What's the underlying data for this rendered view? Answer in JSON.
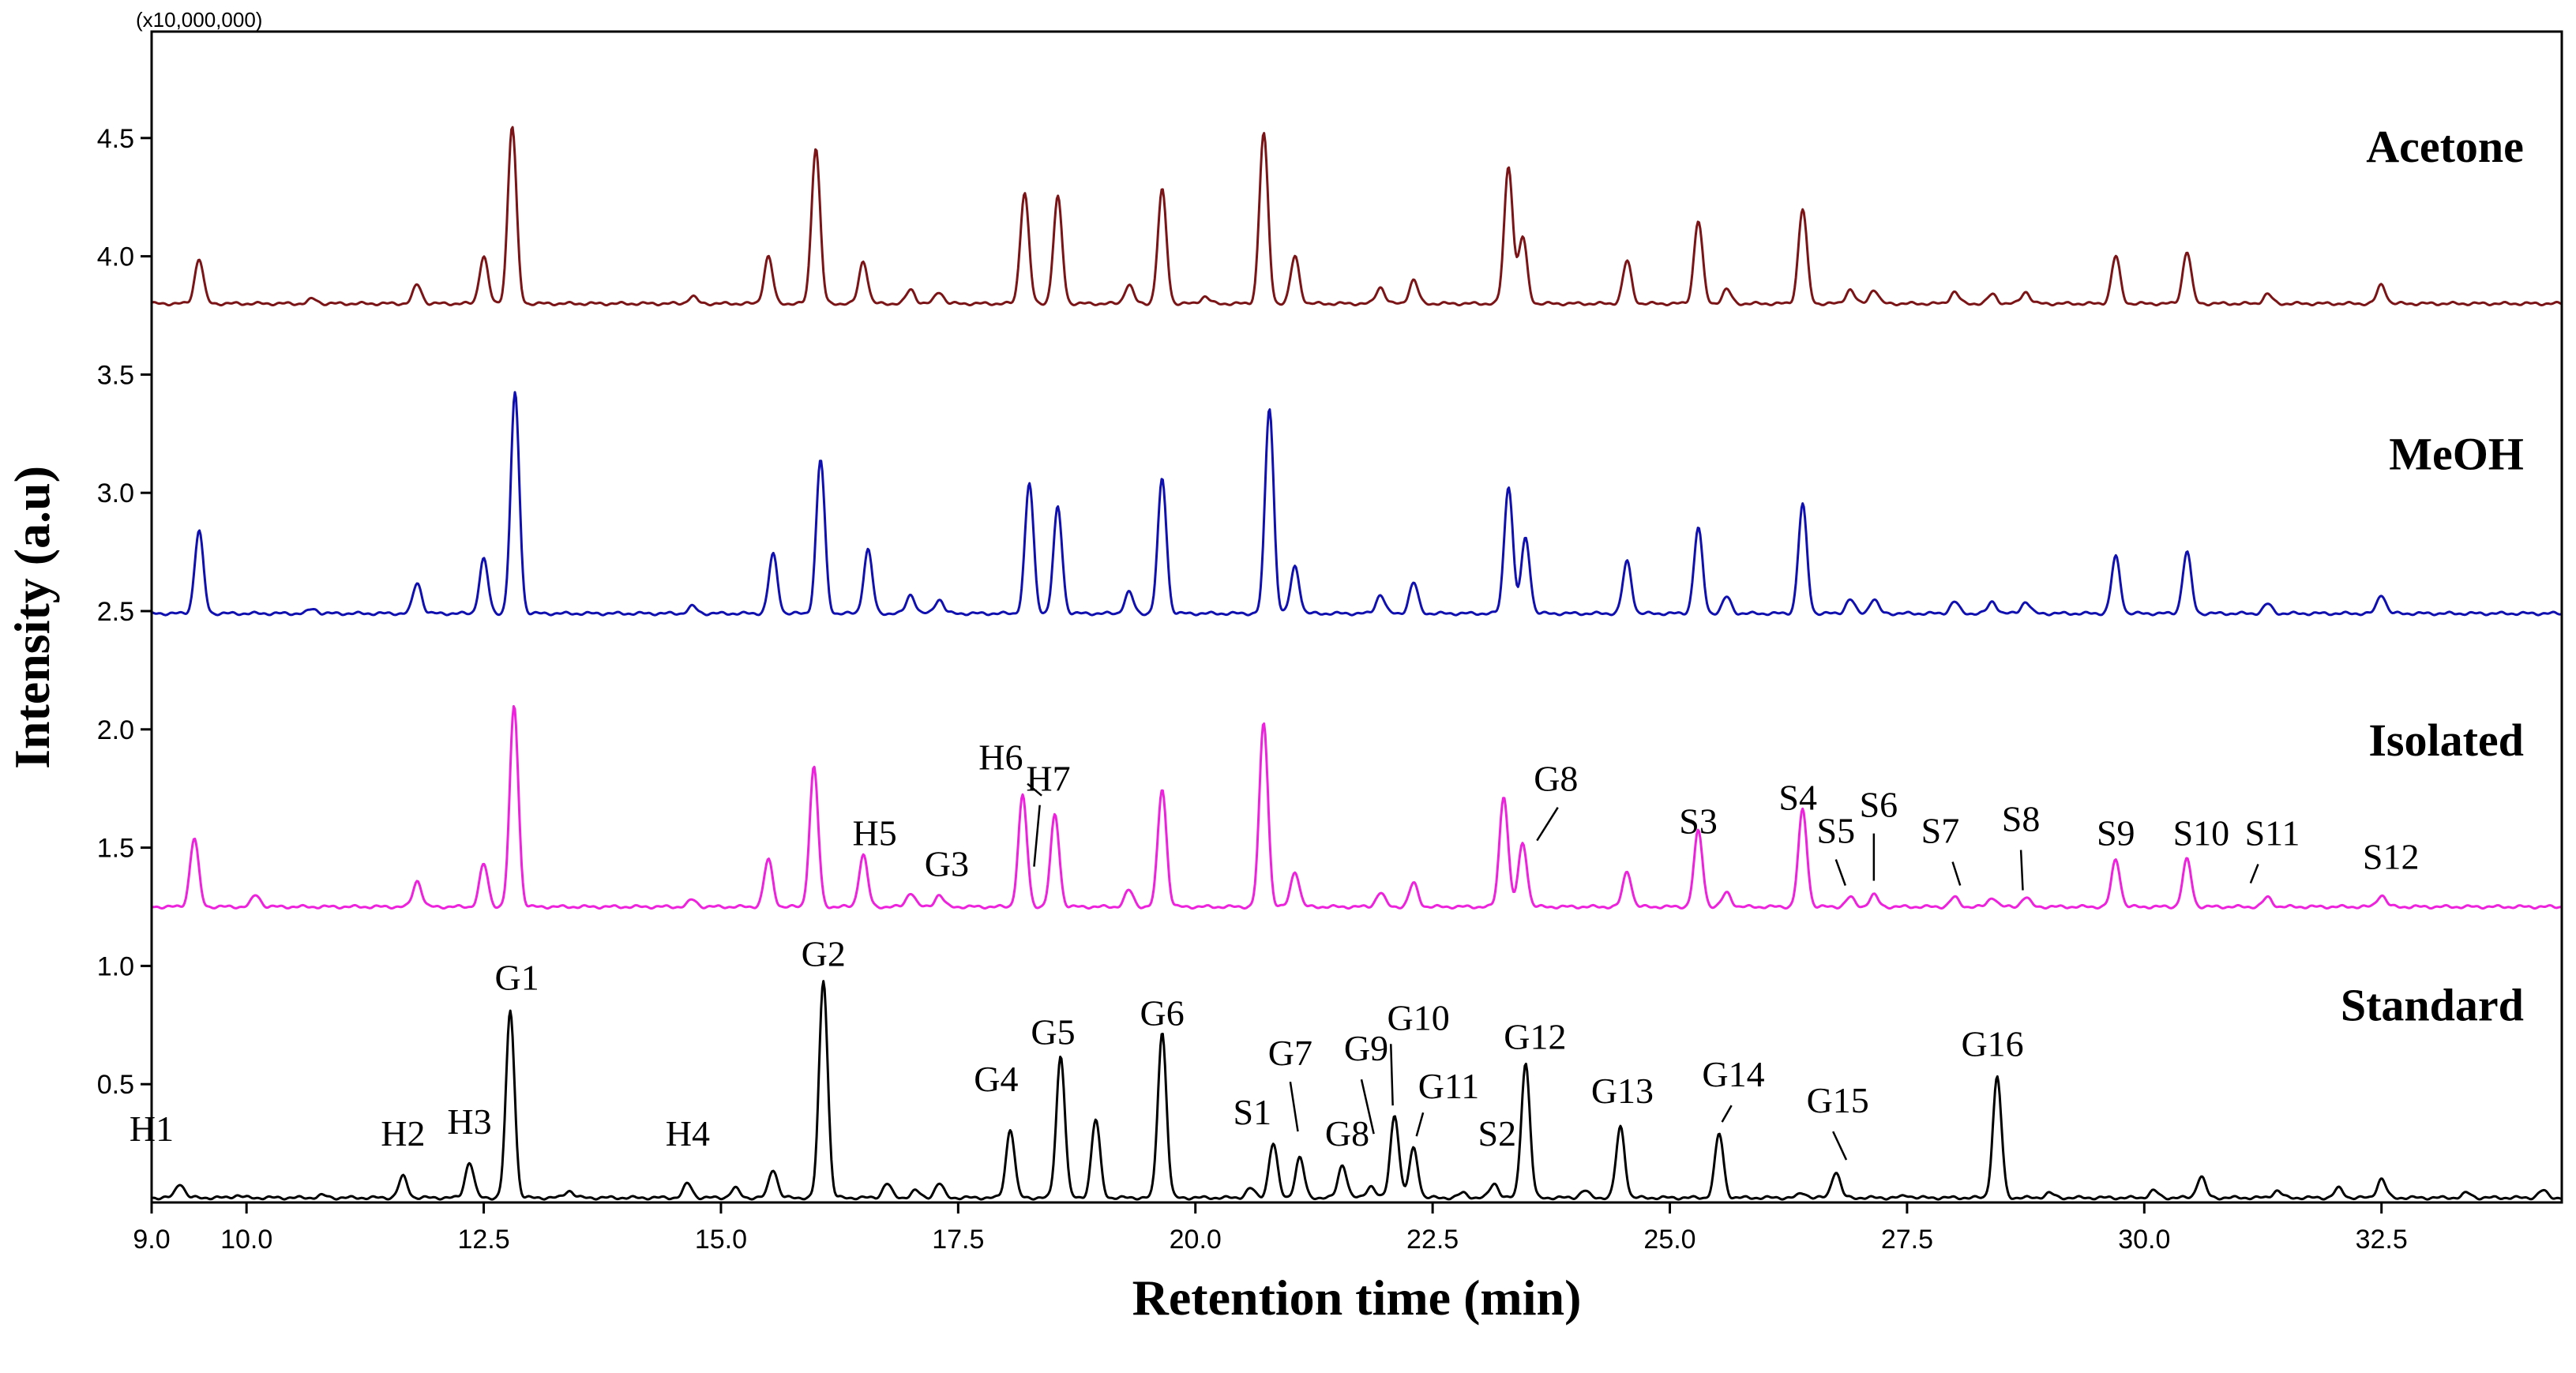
{
  "chart_data": {
    "type": "line",
    "title": "",
    "xlabel": "Retention time (min)",
    "ylabel": "Intensity (a.u)",
    "y_multiplier": "(x10,000,000)",
    "xlim": [
      9.0,
      34.4
    ],
    "ylim": [
      0.0,
      4.95
    ],
    "x_ticks": [
      "9.0",
      "10.0",
      "12.5",
      "15.0",
      "17.5",
      "20.0",
      "22.5",
      "25.0",
      "27.5",
      "30.0",
      "32.5"
    ],
    "x_tick_values": [
      9.0,
      10.0,
      12.5,
      15.0,
      17.5,
      20.0,
      22.5,
      25.0,
      27.5,
      30.0,
      32.5
    ],
    "y_ticks": [
      "0.5",
      "1.0",
      "1.5",
      "2.0",
      "2.5",
      "3.0",
      "3.5",
      "4.0",
      "4.5"
    ],
    "y_tick_values": [
      0.5,
      1.0,
      1.5,
      2.0,
      2.5,
      3.0,
      3.5,
      4.0,
      4.5
    ],
    "series": [
      {
        "name": "Acetone",
        "color": "#7b1416",
        "baseline": 3.8,
        "label_x": 34.0,
        "label_y": 4.4,
        "peaks": [
          [
            9.5,
            0.19
          ],
          [
            10.7,
            0.02
          ],
          [
            11.8,
            0.08
          ],
          [
            12.5,
            0.2
          ],
          [
            12.8,
            0.75
          ],
          [
            14.7,
            0.03
          ],
          [
            15.5,
            0.2
          ],
          [
            16.0,
            0.66
          ],
          [
            16.5,
            0.18
          ],
          [
            17.0,
            0.06
          ],
          [
            17.3,
            0.05
          ],
          [
            18.2,
            0.47
          ],
          [
            18.55,
            0.45
          ],
          [
            19.3,
            0.08
          ],
          [
            19.65,
            0.48
          ],
          [
            20.1,
            0.03
          ],
          [
            20.72,
            0.72
          ],
          [
            21.05,
            0.2
          ],
          [
            21.95,
            0.07
          ],
          [
            22.3,
            0.1
          ],
          [
            23.3,
            0.58
          ],
          [
            23.45,
            0.28
          ],
          [
            24.55,
            0.18
          ],
          [
            25.3,
            0.35
          ],
          [
            25.6,
            0.06
          ],
          [
            26.4,
            0.4
          ],
          [
            26.9,
            0.06
          ],
          [
            27.15,
            0.06
          ],
          [
            28.0,
            0.05
          ],
          [
            28.4,
            0.04
          ],
          [
            28.75,
            0.05
          ],
          [
            29.7,
            0.2
          ],
          [
            30.45,
            0.22
          ],
          [
            31.3,
            0.04
          ],
          [
            32.5,
            0.08
          ]
        ],
        "peak_labels": []
      },
      {
        "name": "MeOH",
        "color": "#1010b0",
        "baseline": 2.49,
        "label_x": 34.0,
        "label_y": 3.1,
        "peaks": [
          [
            9.5,
            0.35
          ],
          [
            10.7,
            0.02
          ],
          [
            11.8,
            0.13
          ],
          [
            12.5,
            0.23
          ],
          [
            12.83,
            0.93
          ],
          [
            14.7,
            0.03
          ],
          [
            15.55,
            0.25
          ],
          [
            16.05,
            0.65
          ],
          [
            16.55,
            0.27
          ],
          [
            17.0,
            0.08
          ],
          [
            17.3,
            0.06
          ],
          [
            18.25,
            0.55
          ],
          [
            18.55,
            0.45
          ],
          [
            19.3,
            0.09
          ],
          [
            19.65,
            0.57
          ],
          [
            20.78,
            0.87
          ],
          [
            21.05,
            0.2
          ],
          [
            21.95,
            0.08
          ],
          [
            22.3,
            0.13
          ],
          [
            23.3,
            0.54
          ],
          [
            23.48,
            0.32
          ],
          [
            24.55,
            0.22
          ],
          [
            25.3,
            0.36
          ],
          [
            25.6,
            0.07
          ],
          [
            26.4,
            0.46
          ],
          [
            26.9,
            0.06
          ],
          [
            27.15,
            0.06
          ],
          [
            28.0,
            0.05
          ],
          [
            28.4,
            0.05
          ],
          [
            28.75,
            0.05
          ],
          [
            29.7,
            0.24
          ],
          [
            30.45,
            0.26
          ],
          [
            31.3,
            0.04
          ],
          [
            32.5,
            0.08
          ]
        ],
        "peak_labels": []
      },
      {
        "name": "Isolated",
        "color": "#ee22dd",
        "baseline": 1.25,
        "label_x": 34.0,
        "label_y": 1.89,
        "peaks": [
          [
            9.45,
            0.29
          ],
          [
            10.1,
            0.05
          ],
          [
            11.8,
            0.11
          ],
          [
            12.5,
            0.18
          ],
          [
            12.82,
            0.85
          ],
          [
            14.7,
            0.03
          ],
          [
            15.5,
            0.2
          ],
          [
            15.98,
            0.59
          ],
          [
            16.5,
            0.22
          ],
          [
            17.0,
            0.06
          ],
          [
            17.3,
            0.05
          ],
          [
            18.18,
            0.47
          ],
          [
            18.52,
            0.39
          ],
          [
            19.3,
            0.07
          ],
          [
            19.65,
            0.5
          ],
          [
            20.72,
            0.78
          ],
          [
            21.05,
            0.15
          ],
          [
            21.95,
            0.06
          ],
          [
            22.3,
            0.1
          ],
          [
            23.25,
            0.47
          ],
          [
            23.45,
            0.27
          ],
          [
            24.55,
            0.15
          ],
          [
            25.3,
            0.32
          ],
          [
            25.6,
            0.06
          ],
          [
            26.4,
            0.41
          ],
          [
            26.9,
            0.04
          ],
          [
            27.15,
            0.05
          ],
          [
            28.0,
            0.04
          ],
          [
            28.4,
            0.04
          ],
          [
            28.75,
            0.04
          ],
          [
            29.7,
            0.2
          ],
          [
            30.45,
            0.2
          ],
          [
            31.3,
            0.04
          ],
          [
            32.5,
            0.05
          ]
        ],
        "peak_labels": [
          {
            "text": "H5",
            "x": 16.62,
            "y": 1.51
          },
          {
            "text": "G3",
            "x": 17.38,
            "y": 1.38
          },
          {
            "text": "H6",
            "x": 17.95,
            "y": 1.83,
            "lx1": 18.23,
            "ly1": 1.77,
            "lx2": 18.38,
            "ly2": 1.72
          },
          {
            "text": "H7",
            "x": 18.45,
            "y": 1.74,
            "lx1": 18.36,
            "ly1": 1.68,
            "lx2": 18.3,
            "ly2": 1.42
          },
          {
            "text": "G8",
            "x": 23.8,
            "y": 1.74,
            "lx1": 23.82,
            "ly1": 1.67,
            "lx2": 23.6,
            "ly2": 1.53
          },
          {
            "text": "S3",
            "x": 25.3,
            "y": 1.56
          },
          {
            "text": "S4",
            "x": 26.35,
            "y": 1.66
          },
          {
            "text": "S5",
            "x": 26.75,
            "y": 1.52,
            "lx1": 26.75,
            "ly1": 1.45,
            "lx2": 26.85,
            "ly2": 1.34
          },
          {
            "text": "S6",
            "x": 27.2,
            "y": 1.63,
            "lx1": 27.15,
            "ly1": 1.56,
            "lx2": 27.15,
            "ly2": 1.36
          },
          {
            "text": "S7",
            "x": 27.85,
            "y": 1.52,
            "lx1": 27.98,
            "ly1": 1.44,
            "lx2": 28.06,
            "ly2": 1.34
          },
          {
            "text": "S8",
            "x": 28.7,
            "y": 1.57,
            "lx1": 28.7,
            "ly1": 1.49,
            "lx2": 28.72,
            "ly2": 1.32
          },
          {
            "text": "S9",
            "x": 29.7,
            "y": 1.51
          },
          {
            "text": "S10",
            "x": 30.6,
            "y": 1.51
          },
          {
            "text": "S11",
            "x": 31.35,
            "y": 1.51,
            "lx1": 31.2,
            "ly1": 1.43,
            "lx2": 31.12,
            "ly2": 1.35
          },
          {
            "text": "S12",
            "x": 32.6,
            "y": 1.41
          }
        ]
      },
      {
        "name": "Standard",
        "color": "#000000",
        "baseline": 0.02,
        "label_x": 34.0,
        "label_y": 0.77,
        "peaks": [
          [
            9.3,
            0.06
          ],
          [
            9.9,
            0.01
          ],
          [
            10.8,
            0.01
          ],
          [
            11.65,
            0.09
          ],
          [
            12.35,
            0.15
          ],
          [
            12.78,
            0.79
          ],
          [
            13.4,
            0.03
          ],
          [
            14.65,
            0.06
          ],
          [
            15.15,
            0.04
          ],
          [
            15.55,
            0.12
          ],
          [
            16.08,
            0.92
          ],
          [
            16.75,
            0.06
          ],
          [
            17.05,
            0.03
          ],
          [
            17.3,
            0.06
          ],
          [
            18.05,
            0.29
          ],
          [
            18.58,
            0.6
          ],
          [
            18.95,
            0.33
          ],
          [
            19.65,
            0.7
          ],
          [
            20.58,
            0.04
          ],
          [
            20.82,
            0.23
          ],
          [
            21.1,
            0.17
          ],
          [
            21.55,
            0.14
          ],
          [
            21.85,
            0.05
          ],
          [
            22.1,
            0.35
          ],
          [
            22.3,
            0.21
          ],
          [
            22.82,
            0.02
          ],
          [
            23.15,
            0.06
          ],
          [
            23.48,
            0.57
          ],
          [
            24.1,
            0.03
          ],
          [
            24.48,
            0.3
          ],
          [
            25.52,
            0.27
          ],
          [
            26.4,
            0.02
          ],
          [
            26.75,
            0.11
          ],
          [
            27.5,
            0.01
          ],
          [
            28.45,
            0.51
          ],
          [
            29.0,
            0.02
          ],
          [
            30.1,
            0.03
          ],
          [
            30.6,
            0.09
          ],
          [
            31.4,
            0.03
          ],
          [
            32.05,
            0.04
          ],
          [
            32.5,
            0.08
          ],
          [
            33.4,
            0.02
          ],
          [
            34.2,
            0.03
          ]
        ],
        "peak_labels": [
          {
            "text": "H1",
            "x": 9.0,
            "y": 0.26
          },
          {
            "text": "H2",
            "x": 11.65,
            "y": 0.24
          },
          {
            "text": "H3",
            "x": 12.35,
            "y": 0.29
          },
          {
            "text": "G1",
            "x": 12.85,
            "y": 0.9
          },
          {
            "text": "H4",
            "x": 14.65,
            "y": 0.24
          },
          {
            "text": "G2",
            "x": 16.08,
            "y": 1.0
          },
          {
            "text": "G4",
            "x": 17.9,
            "y": 0.47
          },
          {
            "text": "G5",
            "x": 18.5,
            "y": 0.67
          },
          {
            "text": "G6",
            "x": 19.65,
            "y": 0.75
          },
          {
            "text": "S1",
            "x": 20.6,
            "y": 0.33
          },
          {
            "text": "G7",
            "x": 21.0,
            "y": 0.58,
            "lx1": 21.0,
            "ly1": 0.51,
            "lx2": 21.08,
            "ly2": 0.3
          },
          {
            "text": "G8",
            "x": 21.6,
            "y": 0.24
          },
          {
            "text": "G9",
            "x": 21.8,
            "y": 0.6,
            "lx1": 21.75,
            "ly1": 0.52,
            "lx2": 21.88,
            "ly2": 0.29
          },
          {
            "text": "G10",
            "x": 22.35,
            "y": 0.73,
            "lx1": 22.06,
            "ly1": 0.67,
            "lx2": 22.08,
            "ly2": 0.41
          },
          {
            "text": "G11",
            "x": 22.67,
            "y": 0.44,
            "lx1": 22.4,
            "ly1": 0.38,
            "lx2": 22.33,
            "ly2": 0.28
          },
          {
            "text": "S2",
            "x": 23.18,
            "y": 0.24
          },
          {
            "text": "G12",
            "x": 23.58,
            "y": 0.65
          },
          {
            "text": "G13",
            "x": 24.5,
            "y": 0.42
          },
          {
            "text": "G14",
            "x": 25.67,
            "y": 0.49,
            "lx1": 25.65,
            "ly1": 0.41,
            "lx2": 25.55,
            "ly2": 0.34
          },
          {
            "text": "G15",
            "x": 26.77,
            "y": 0.38,
            "lx1": 26.72,
            "ly1": 0.3,
            "lx2": 26.86,
            "ly2": 0.18
          },
          {
            "text": "G16",
            "x": 28.4,
            "y": 0.62
          }
        ]
      }
    ]
  }
}
